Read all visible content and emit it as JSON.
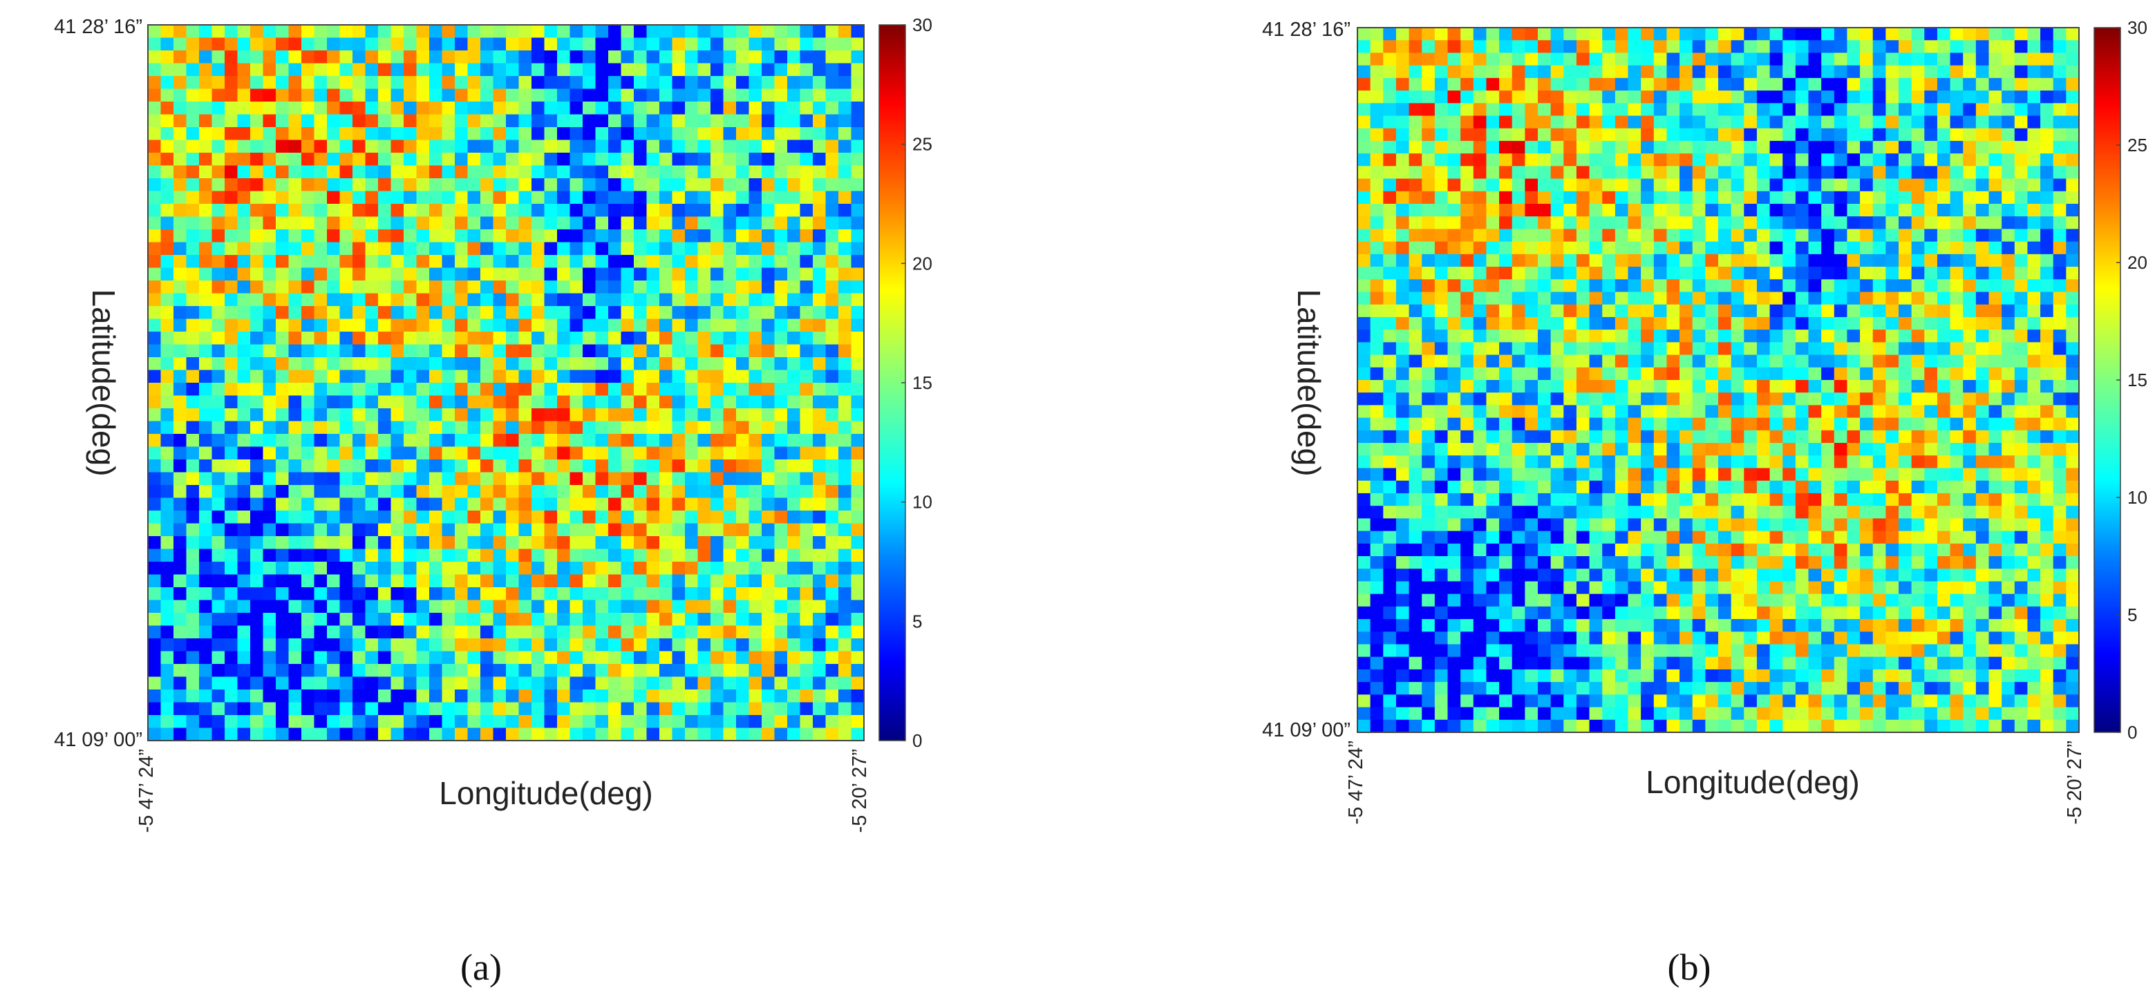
{
  "chart_data": [
    {
      "type": "heatmap",
      "panel_label": "(a)",
      "ylabel": "Latitude(deg)",
      "xlabel": "Longitude(deg)",
      "y_ticks": [
        "41 28’ 16”",
        "41 09’ 00”"
      ],
      "x_ticks": [
        "-5 47’ 24”",
        "-5 20’ 27”"
      ],
      "colorbar": {
        "min": 0,
        "max": 30,
        "ticks": [
          "0",
          "5",
          "10",
          "15",
          "20",
          "25",
          "30"
        ],
        "colormap": "jet"
      }
    },
    {
      "type": "heatmap",
      "panel_label": "(b)",
      "ylabel": "Latitude(deg)",
      "xlabel": "Longitude(deg)",
      "y_ticks": [
        "41 28’ 16”",
        "41 09’ 00”"
      ],
      "x_ticks": [
        "-5 47’ 24”",
        "-5 20’ 27”"
      ],
      "colorbar": {
        "min": 0,
        "max": 30,
        "ticks": [
          "0",
          "5",
          "10",
          "15",
          "20",
          "25",
          "30"
        ],
        "colormap": "jet"
      }
    }
  ],
  "colors": {
    "jet_stops": [
      "#00007f",
      "#0000ff",
      "#0080ff",
      "#00ffff",
      "#80ff80",
      "#ffff00",
      "#ff8000",
      "#ff0000",
      "#7f0000"
    ],
    "map_base": "#1f6fd8"
  }
}
